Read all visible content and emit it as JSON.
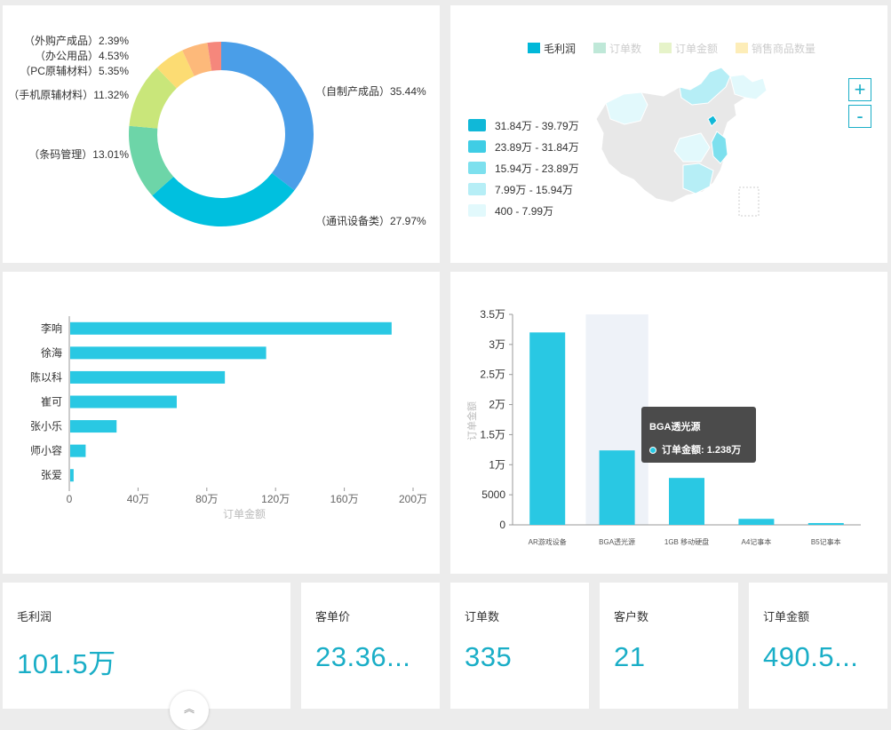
{
  "colors": {
    "accent": "#1aaec7",
    "bar": "#29c8e3",
    "pie": [
      "#4a9ee8",
      "#00c0df",
      "#6dd5a8",
      "#c9e67a",
      "#fcdc73",
      "#fdb97a",
      "#f5877c"
    ],
    "map_scale": [
      "#10b8d8",
      "#3fcde5",
      "#7de0ee",
      "#b6eef6",
      "#e2f9fc"
    ]
  },
  "pie": {
    "slices": [
      {
        "label": "（自制产成品）35.44%",
        "value": 35.44
      },
      {
        "label": "（通讯设备类）27.97%",
        "value": 27.97
      },
      {
        "label": "（条码管理）13.01%",
        "value": 13.01
      },
      {
        "label": "（手机原辅材料）11.32%",
        "value": 11.32
      },
      {
        "label": "（PC原辅材料）5.35%",
        "value": 5.35
      },
      {
        "label": "（办公用品）4.53%",
        "value": 4.53
      },
      {
        "label": "（外购产成品）2.39%",
        "value": 2.39
      }
    ]
  },
  "map": {
    "legend": [
      {
        "label": "毛利润",
        "active": true
      },
      {
        "label": "订单数",
        "active": false
      },
      {
        "label": "订单金额",
        "active": false
      },
      {
        "label": "销售商品数量",
        "active": false
      }
    ],
    "ranges": [
      "31.84万 - 39.79万",
      "23.89万 - 31.84万",
      "15.94万 - 23.89万",
      "7.99万 - 15.94万",
      "400 - 7.99万"
    ],
    "zoom_in": "+",
    "zoom_out": "-"
  },
  "hbar": {
    "xlabel": "订单金额",
    "ticks": [
      "0",
      "40万",
      "80万",
      "120万",
      "160万",
      "200万"
    ],
    "categories": [
      "李响",
      "徐海",
      "陈以科",
      "崔可",
      "张小乐",
      "师小容",
      "张爱"
    ],
    "values": [
      187,
      114,
      90,
      62,
      27,
      9,
      2
    ],
    "xmax": 200
  },
  "vbar": {
    "ylabel": "订单金额",
    "yticks": [
      "3.5万",
      "3万",
      "2.5万",
      "2万",
      "1.5万",
      "1万",
      "5000",
      "0"
    ],
    "categories": [
      "AR游戏设备",
      "BGA透光源",
      "1GB 移动硬盘",
      "A4记事本",
      "B5记事本"
    ],
    "values": [
      32000,
      12380,
      7800,
      1000,
      300
    ],
    "ymax": 35000,
    "highlight_index": 1,
    "tooltip": {
      "title": "BGA透光源",
      "row": "订单金额: 1.238万"
    }
  },
  "kpis": [
    {
      "label": "毛利润",
      "value": "101.5万"
    },
    {
      "label": "客单价",
      "value": "23.36..."
    },
    {
      "label": "订单数",
      "value": "335"
    },
    {
      "label": "客户数",
      "value": "21"
    },
    {
      "label": "订单金额",
      "value": "490.5..."
    }
  ],
  "scroll_top_icon": "double-chevron-up-icon"
}
